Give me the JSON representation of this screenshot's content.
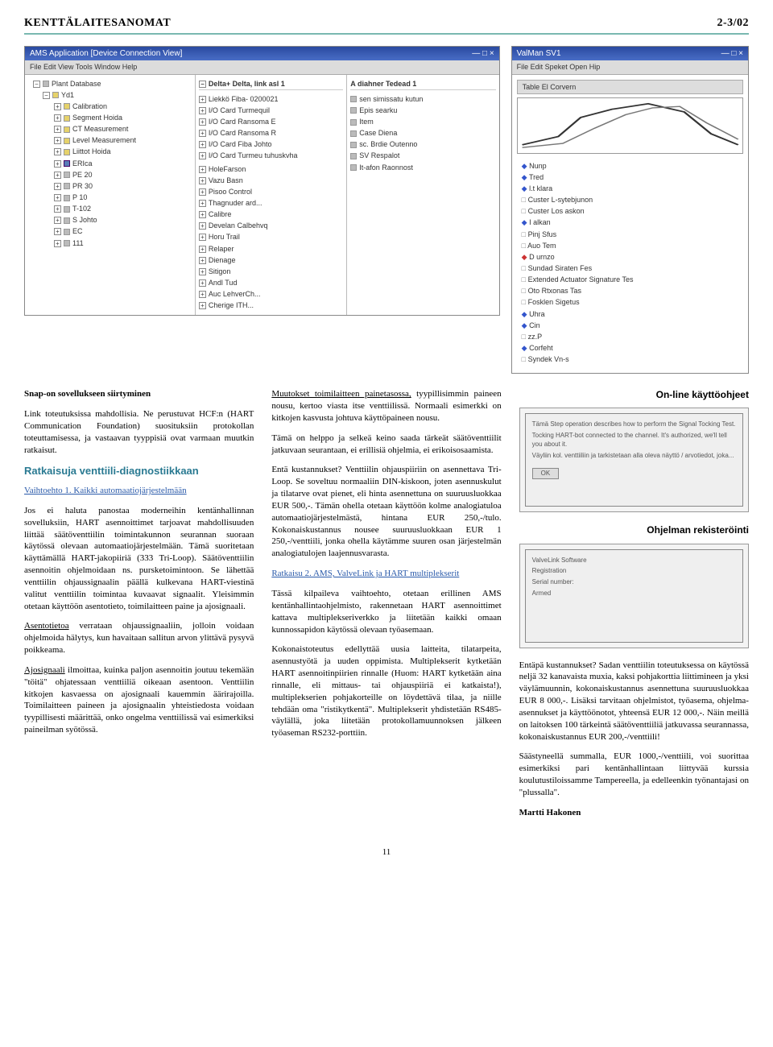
{
  "header": {
    "title": "KENTTÄLAITESANOMAT",
    "issue": "2-3/02"
  },
  "screenshots": {
    "win_a": {
      "title": "AMS Application  [Device Connection View]",
      "menu": "File  Edit  View  Tools  Window  Help",
      "tree": [
        {
          "lvl": 0,
          "icon": "gray",
          "txt": "Plant Database"
        },
        {
          "lvl": 1,
          "icon": "folder",
          "txt": "Yd1"
        },
        {
          "lvl": 2,
          "icon": "folder",
          "txt": "Calibration"
        },
        {
          "lvl": 2,
          "icon": "folder",
          "txt": "Segment Hoida"
        },
        {
          "lvl": 2,
          "icon": "folder",
          "txt": "CT Measurement"
        },
        {
          "lvl": 2,
          "icon": "folder",
          "txt": "Level Measurement"
        },
        {
          "lvl": 2,
          "icon": "folder",
          "txt": "Liittot Hoida"
        },
        {
          "lvl": 2,
          "icon": "blue",
          "txt": "ERIca"
        },
        {
          "lvl": 2,
          "icon": "gray",
          "txt": "PE 20"
        },
        {
          "lvl": 2,
          "icon": "gray",
          "txt": "PR 30"
        },
        {
          "lvl": 2,
          "icon": "gray",
          "txt": "P 10"
        },
        {
          "lvl": 2,
          "icon": "gray",
          "txt": "T-102"
        },
        {
          "lvl": 2,
          "icon": "gray",
          "txt": "S Johto"
        },
        {
          "lvl": 2,
          "icon": "gray",
          "txt": "EC"
        },
        {
          "lvl": 2,
          "icon": "gray",
          "txt": "111"
        }
      ],
      "mid_header": "Delta+ Delta, link asl 1",
      "mid": [
        "Liekkö  Fiba- 0200021",
        "I/O Card  Turmequil",
        "I/O Card  Ransoma E",
        "I/O Card  Ransoma R",
        "I/O Card  Fiba  Johto",
        "I/O Card  Turmeu tuhuskvha",
        " ",
        "HoleFarson",
        "Vazu Basn",
        "Pisoo Control",
        "Thagnuder ard...",
        "Calibre",
        "Develan Calbehvq",
        "Horu Trail",
        "Relaper",
        "Dienage",
        "Sitigon",
        "Andl Tud",
        "Auc LehverCh...",
        "Cherige ITH..."
      ],
      "right_header": "A diahner Tedead 1",
      "right": [
        "sen simissatu kutun",
        "Epis searku",
        "Item",
        "Case Diena",
        "sc. Brdie Outenno",
        "SV Respalot",
        "It-afon Raonnost"
      ]
    },
    "win_b": {
      "title": "ValMan  SV1",
      "menu": "File  Edit  Speket  Open  Hip",
      "tabs": "Table El Corvern",
      "bullets": [
        {
          "cls": "b-blue",
          "txt": "Nunp"
        },
        {
          "cls": "b-blue",
          "txt": "Tred"
        },
        {
          "cls": "b-blue",
          "txt": "l.t klara"
        },
        {
          "cls": "b-sub",
          "txt": "Custer L-sytebjunon"
        },
        {
          "cls": "b-sub",
          "txt": "Custer Los askon"
        },
        {
          "cls": "b-blue",
          "txt": "I alkan"
        },
        {
          "cls": "b-sub",
          "txt": "Pinj Sfus"
        },
        {
          "cls": "b-sub",
          "txt": "Auo Tem"
        },
        {
          "cls": "b-red",
          "txt": "D urnzo"
        },
        {
          "cls": "b-sub",
          "txt": "Sundad Siraten Fes"
        },
        {
          "cls": "b-sub",
          "txt": "Extended Actuator Signature Tes"
        },
        {
          "cls": "b-sub",
          "txt": "Oto Rtxonas Tas"
        },
        {
          "cls": "b-sub",
          "txt": "Fosklen Sigetus"
        },
        {
          "cls": "b-blue",
          "txt": "Uhra"
        },
        {
          "cls": "b-blue",
          "txt": "Cin"
        },
        {
          "cls": "b-sub",
          "txt": "zz.P"
        },
        {
          "cls": "b-blue",
          "txt": "Corfeht"
        },
        {
          "cls": "b-sub",
          "txt": "Syndek Vn-s"
        }
      ]
    }
  },
  "body": {
    "c1": {
      "h_snap": "Snap-on sovellukseen siirtyminen",
      "p1": "Link toteutuksissa mahdollisia. Ne perustuvat HCF:n (HART Communication Foundation) suosituksiin protokollan toteuttamisessa, ja vastaavan tyyppisiä ovat varmaan muutkin ratkaisut.",
      "h_ratk": "Ratkaisuja venttiili-diagnostiikkaan",
      "link_v1": "Vaihtoehto 1. Kaikki automaatiojärjestelmään",
      "p2": "Jos ei haluta panostaa moderneihin kentänhallinnan sovelluksiin, HART asennoittimet tarjoavat mahdollisuuden liittää säätöventtiilin toimintakunnon seurannan suoraan käytössä olevaan automaatiojärjestelmään. Tämä suoritetaan käyttämällä HART-jakopiiriä (333 Tri-Loop). Säätöventtiilin asennoitin ohjelmoidaan ns. pursketoimintoon. Se lähettää venttiilin ohjaussignaalin päällä kulkevana HART-viestinä valitut venttiilin toimintaa kuvaavat signaalit. Yleisimmin otetaan käyttöön asentotieto, toimilaitteen paine ja ajosignaali.",
      "p3_lead": "Asentotietoa",
      "p3": " verrataan ohjaussignaaliin, jolloin voidaan ohjelmoida hälytys, kun havaitaan sallitun arvon ylittävä pysyvä poikkeama.",
      "p4_lead": "Ajosignaali",
      "p4": " ilmoittaa, kuinka paljon asennoitin joutuu tekemään \"töitä\" ohjatessaan venttiiliä oikeaan asentoon. Venttiilin kitkojen kasvaessa on ajosignaali kauemmin äärirajoilla. Toimilaitteen paineen ja ajosignaalin yhteistiedosta voidaan tyypillisesti määrittää, onko ongelma venttiilissä vai esimerkiksi paineilman syötössä."
    },
    "c2": {
      "p1_lead": "Muutokset toimilaitteen painetasossa,",
      "p1": " tyypillisimmin paineen nousu, kertoo viasta itse venttiilissä. Normaali esimerkki on kitkojen kasvusta johtuva käyttöpaineen nousu.",
      "p2": "Tämä on helppo ja selkeä keino saada tärkeät säätöventtiilit jatkuvaan seurantaan, ei erillisiä ohjelmia, ei erikoisosaamista.",
      "p3": "Entä kustannukset? Venttiilin ohjauspiiriin on asennettava Tri-Loop. Se soveltuu normaaliin DIN-kiskoon, joten asennuskulut ja tilatarve ovat pienet, eli hinta asennettuna on suuruusluokkaa EUR 500,-. Tämän ohella otetaan käyttöön kolme analogiatuloa automaatiojärjestelmästä, hintana EUR 250,-/tulo. Kokonaiskustannus nousee suuruusluokkaan EUR 1 250,-/venttiili, jonka ohella käytämme suuren osan järjestelmän analogiatulojen laajennusvarasta.",
      "link_r2": "Ratkaisu 2. AMS, ValveLink ja HART multiplekserit",
      "p4": "Tässä kilpaileva vaihtoehto, otetaan erillinen AMS kentänhallintaohjelmisto, rakennetaan HART asennoittimet kattava multiplekseriverkko ja liitetään kaikki omaan kunnossapidon käytössä olevaan työasemaan.",
      "p5": "Kokonaistoteutus edellyttää uusia laitteita, tilatarpeita, asennustyötä ja uuden oppimista. Multiplekserit kytketään HART asennoitinpiirien rinnalle (Huom: HART kytketään aina rinnalle, eli mittaus- tai ohjauspiiriä ei katkaista!), multiplekserien pohjakorteille on löydettävä tilaa, ja niille tehdään oma \"ristikytkentä\". Multiplekserit yhdistetään RS485-väylällä, joka liitetään protokollamuunnoksen jälkeen työaseman RS232-porttiin."
    },
    "c3": {
      "t_online": "On-line käyttöohjeet",
      "shot1_lines": [
        "Tämä Step operation describes how to perform the Signal Tocking Test.",
        "Tocking HART-bot connected to the channel. It's authorized, we'll tell you about it.",
        "Väyliin kol. venttiiliin ja tarkistetaan alla oleva näyttö / arvotiedot, joka...",
        ""
      ],
      "shot1_btn": "OK",
      "t_reg": "Ohjelman rekisteröinti",
      "shot2_lines": [
        "ValveLink Software",
        "Registration",
        "Serial number:",
        "Armed"
      ],
      "p1": "Entäpä kustannukset? Sadan venttiilin toteutuksessa on käytössä neljä 32 kanavaista muxia, kaksi pohjakorttia liittimineen ja yksi väylämuunnin, kokonaiskustannus asennettuna suuruusluokkaa EUR 8 000,-. Lisäksi tarvitaan ohjelmistot, työasema, ohjelma-asennukset ja käyttöönotot, yhteensä EUR 12 000,-. Näin meillä on laitoksen 100 tärkeintä säätöventtiiliä jatkuvassa seurannassa, kokonaiskustannus EUR 200,-/venttiili!",
      "p2": "Säästyneellä summalla, EUR 1000,-/venttiili, voi suorittaa esimerkiksi pari kentänhallintaan liittyvää kurssia koulutustiloissamme Tampereella, ja edelleenkin työnantajasi on \"plussalla\".",
      "author": "Martti Hakonen"
    }
  },
  "page_number": "11"
}
